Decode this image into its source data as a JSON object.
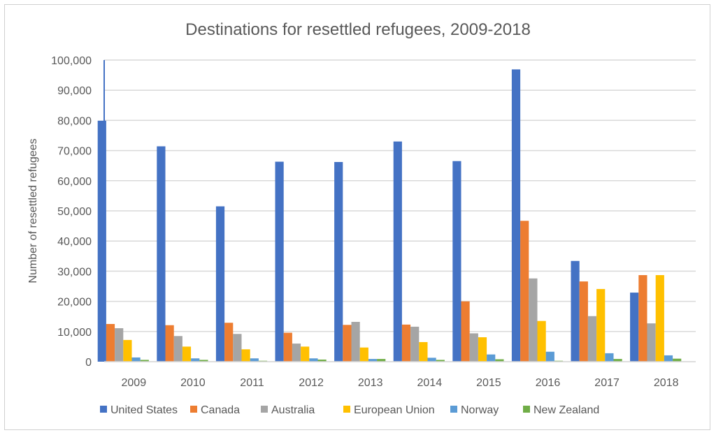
{
  "chart_data": {
    "type": "bar",
    "title": "Destinations for resettled refugees, 2009-2018",
    "xlabel": "",
    "ylabel": "Number of resettled refugees",
    "ylim": [
      0,
      100000
    ],
    "yticks": [
      "0",
      "10,000",
      "20,000",
      "30,000",
      "40,000",
      "50,000",
      "60,000",
      "70,000",
      "80,000",
      "90,000",
      "100,000"
    ],
    "grid": true,
    "legend": "bottom",
    "categories": [
      "2009",
      "2010",
      "2011",
      "2012",
      "2013",
      "2014",
      "2015",
      "2016",
      "2017",
      "2018"
    ],
    "series": [
      {
        "name": "United States",
        "color": "#4472C4",
        "values": [
          79900,
          71400,
          51500,
          66300,
          66200,
          73000,
          66500,
          96900,
          33400,
          22900
        ]
      },
      {
        "name": "Canada",
        "color": "#ED7D31",
        "values": [
          12500,
          12100,
          12900,
          9600,
          12200,
          12300,
          20000,
          46700,
          26600,
          28700
        ]
      },
      {
        "name": "Australia",
        "color": "#A5A5A5",
        "values": [
          11100,
          8500,
          9200,
          6000,
          13200,
          11600,
          9400,
          27600,
          15100,
          12700
        ]
      },
      {
        "name": "European Union",
        "color": "#FFC000",
        "values": [
          7200,
          5000,
          4100,
          5000,
          4700,
          6500,
          8100,
          13500,
          24100,
          28700
        ]
      },
      {
        "name": "Norway",
        "color": "#5B9BD5",
        "values": [
          1400,
          1100,
          1100,
          1100,
          900,
          1300,
          2400,
          3300,
          2800,
          2100
        ]
      },
      {
        "name": "New Zealand",
        "color": "#70AD47",
        "values": [
          600,
          600,
          300,
          700,
          900,
          600,
          800,
          300,
          900,
          1000
        ]
      }
    ]
  }
}
